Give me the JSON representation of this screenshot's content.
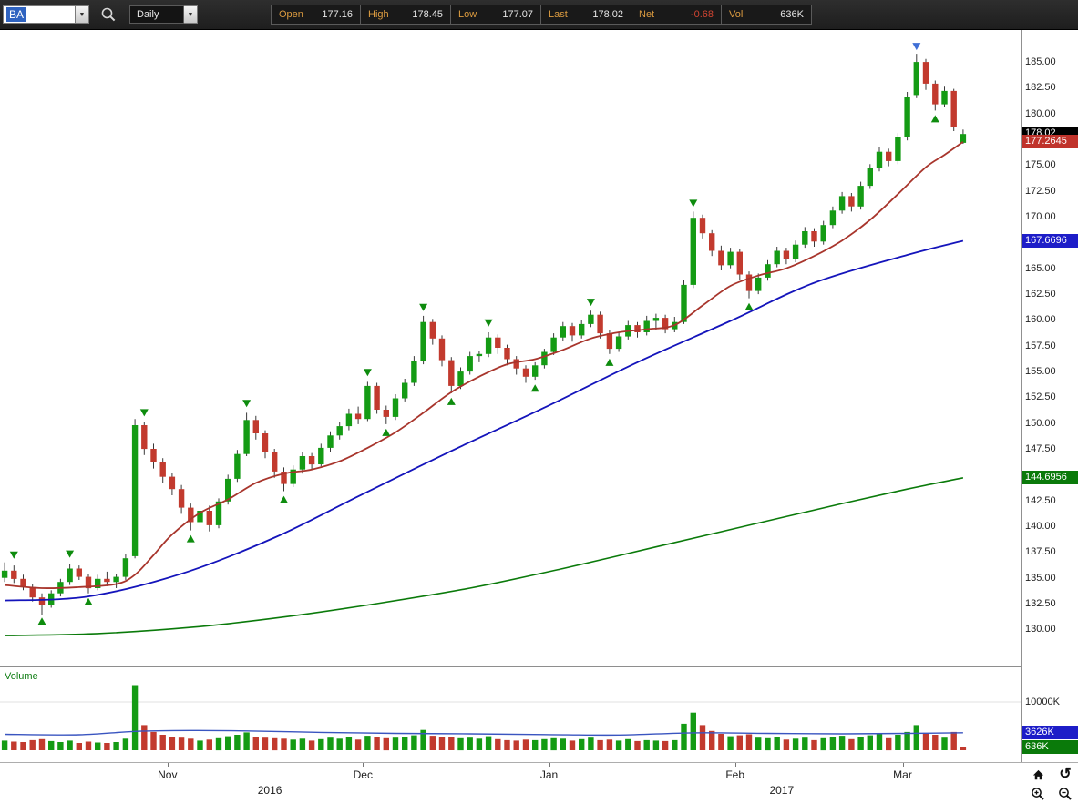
{
  "toolbar": {
    "symbol_value": "BA",
    "timeframe": "Daily",
    "quote_fields": [
      {
        "label": "Open",
        "value": "177.16",
        "value_color": "#e6e6e6"
      },
      {
        "label": "High",
        "value": "178.45",
        "value_color": "#e6e6e6"
      },
      {
        "label": "Low",
        "value": "177.07",
        "value_color": "#e6e6e6"
      },
      {
        "label": "Last",
        "value": "178.02",
        "value_color": "#e6e6e6"
      },
      {
        "label": "Net",
        "value": "-0.68",
        "value_color": "#d24532"
      },
      {
        "label": "Vol",
        "value": "636K",
        "value_color": "#e6e6e6"
      }
    ]
  },
  "icons": {
    "chevron_down": "▼",
    "undo": "↺"
  },
  "chart_data": {
    "type": "candlestick",
    "symbol": "BA",
    "timeframe": "Daily",
    "price_range": [
      126.5,
      188.1
    ],
    "ylim": [
      126.5,
      188.1
    ],
    "y_ticks": [
      "185.00",
      "182.50",
      "180.00",
      "175.00",
      "172.50",
      "170.00",
      "165.00",
      "162.50",
      "160.00",
      "157.50",
      "155.00",
      "152.50",
      "150.00",
      "147.50",
      "142.50",
      "140.00",
      "137.50",
      "135.00",
      "132.50",
      "130.00"
    ],
    "y_badges": [
      {
        "text": "178.02",
        "value": 178.02,
        "bg": "#000000"
      },
      {
        "text": "177.2645",
        "value": 177.2645,
        "bg": "#c0332b"
      },
      {
        "text": "167.6696",
        "value": 167.6696,
        "bg": "#1d1dc8"
      },
      {
        "text": "144.6956",
        "value": 144.6956,
        "bg": "#0a7a0a"
      }
    ],
    "x_axis": {
      "months": [
        {
          "label": "Nov",
          "i": 18
        },
        {
          "label": "Dec",
          "i": 39
        },
        {
          "label": "Jan",
          "i": 59
        },
        {
          "label": "Feb",
          "i": 79
        },
        {
          "label": "Mar",
          "i": 97
        }
      ],
      "years": [
        {
          "label": "2016",
          "i": 29
        },
        {
          "label": "2017",
          "i": 84
        }
      ]
    },
    "colors": {
      "up": "#149b14",
      "down": "#c23a2e",
      "wick": "#3a3a3a",
      "ma_fast": "#a8352c",
      "ma_mid": "#1414bb",
      "ma_slow": "#0a7a0a",
      "vol_ma": "#3a55c0"
    },
    "candles": [
      [
        135.0,
        136.5,
        134.6,
        135.7,
        2000
      ],
      [
        135.7,
        136.2,
        134.5,
        134.9,
        1800
      ],
      [
        134.9,
        135.3,
        133.8,
        134.1,
        1700
      ],
      [
        134.1,
        134.4,
        132.7,
        133.1,
        2100
      ],
      [
        133.1,
        133.5,
        131.4,
        132.4,
        2300
      ],
      [
        132.4,
        133.8,
        132.1,
        133.5,
        1900
      ],
      [
        133.5,
        134.9,
        133.2,
        134.6,
        1700
      ],
      [
        134.6,
        136.3,
        134.3,
        135.9,
        2000
      ],
      [
        135.9,
        136.2,
        134.8,
        135.1,
        1500
      ],
      [
        135.1,
        135.4,
        133.5,
        134.0,
        1800
      ],
      [
        134.0,
        135.3,
        133.8,
        134.9,
        1600
      ],
      [
        134.9,
        135.6,
        134.2,
        134.6,
        1500
      ],
      [
        134.6,
        135.4,
        134.0,
        135.1,
        1700
      ],
      [
        135.1,
        137.3,
        134.8,
        136.9,
        2400
      ],
      [
        137.1,
        150.4,
        136.9,
        149.8,
        13500
      ],
      [
        149.8,
        150.1,
        146.9,
        147.5,
        5200
      ],
      [
        147.5,
        148.0,
        145.6,
        146.2,
        3800
      ],
      [
        146.2,
        146.6,
        144.2,
        144.8,
        3200
      ],
      [
        144.8,
        145.2,
        143.0,
        143.6,
        2800
      ],
      [
        143.6,
        144.0,
        141.2,
        141.8,
        2600
      ],
      [
        141.8,
        142.2,
        139.6,
        140.4,
        2400
      ],
      [
        140.4,
        141.9,
        139.9,
        141.5,
        2000
      ],
      [
        141.5,
        142.0,
        139.5,
        140.1,
        2200
      ],
      [
        140.1,
        142.7,
        139.8,
        142.4,
        2500
      ],
      [
        142.4,
        145.0,
        142.1,
        144.6,
        2900
      ],
      [
        144.6,
        147.4,
        144.3,
        147.0,
        3200
      ],
      [
        147.0,
        151.0,
        146.8,
        150.3,
        3700
      ],
      [
        150.3,
        150.7,
        148.4,
        149.0,
        2800
      ],
      [
        149.0,
        149.3,
        146.6,
        147.2,
        2600
      ],
      [
        147.2,
        147.5,
        144.7,
        145.3,
        2500
      ],
      [
        145.3,
        145.7,
        143.4,
        144.1,
        2400
      ],
      [
        144.1,
        145.9,
        143.8,
        145.5,
        2200
      ],
      [
        145.5,
        147.2,
        145.1,
        146.8,
        2400
      ],
      [
        146.8,
        147.1,
        145.5,
        146.0,
        2000
      ],
      [
        146.0,
        148.0,
        145.8,
        147.6,
        2300
      ],
      [
        147.6,
        149.2,
        147.2,
        148.8,
        2600
      ],
      [
        148.8,
        150.1,
        148.4,
        149.7,
        2400
      ],
      [
        149.7,
        151.4,
        149.3,
        150.9,
        2800
      ],
      [
        150.9,
        151.6,
        149.9,
        150.4,
        2200
      ],
      [
        150.4,
        154.0,
        150.2,
        153.6,
        3000
      ],
      [
        153.6,
        153.9,
        150.9,
        151.3,
        2700
      ],
      [
        151.3,
        151.7,
        149.9,
        150.6,
        2500
      ],
      [
        150.6,
        152.8,
        150.3,
        152.4,
        2600
      ],
      [
        152.4,
        154.3,
        152.1,
        153.9,
        2800
      ],
      [
        153.9,
        156.5,
        153.6,
        156.0,
        3100
      ],
      [
        156.0,
        160.4,
        155.7,
        159.8,
        4200
      ],
      [
        159.8,
        160.1,
        157.6,
        158.2,
        3000
      ],
      [
        158.2,
        158.5,
        155.5,
        156.1,
        2800
      ],
      [
        156.1,
        156.4,
        152.9,
        153.6,
        2700
      ],
      [
        153.6,
        155.4,
        153.3,
        155.0,
        2500
      ],
      [
        155.0,
        156.9,
        154.7,
        156.5,
        2600
      ],
      [
        156.5,
        157.0,
        155.9,
        156.7,
        2400
      ],
      [
        156.7,
        158.8,
        156.4,
        158.3,
        2900
      ],
      [
        158.3,
        158.6,
        156.7,
        157.3,
        2300
      ],
      [
        157.3,
        157.6,
        155.6,
        156.2,
        2100
      ],
      [
        156.2,
        156.5,
        154.7,
        155.3,
        2000
      ],
      [
        155.3,
        155.6,
        153.9,
        154.5,
        2200
      ],
      [
        154.5,
        155.9,
        154.2,
        155.6,
        2100
      ],
      [
        155.6,
        157.2,
        155.3,
        156.9,
        2300
      ],
      [
        156.9,
        158.7,
        156.6,
        158.3,
        2500
      ],
      [
        158.3,
        159.8,
        158.0,
        159.4,
        2400
      ],
      [
        159.4,
        159.7,
        157.9,
        158.5,
        2000
      ],
      [
        158.5,
        160.0,
        158.2,
        159.6,
        2300
      ],
      [
        159.6,
        160.9,
        159.3,
        160.5,
        2600
      ],
      [
        160.5,
        160.8,
        158.2,
        158.7,
        2100
      ],
      [
        158.7,
        159.0,
        156.7,
        157.2,
        2200
      ],
      [
        157.2,
        158.8,
        156.9,
        158.4,
        2000
      ],
      [
        158.4,
        159.9,
        158.1,
        159.5,
        2300
      ],
      [
        159.5,
        159.8,
        158.3,
        158.8,
        1900
      ],
      [
        158.8,
        160.4,
        158.5,
        159.9,
        2100
      ],
      [
        159.9,
        160.6,
        159.0,
        160.2,
        2000
      ],
      [
        160.2,
        160.5,
        158.7,
        159.1,
        1900
      ],
      [
        159.1,
        160.3,
        158.8,
        159.8,
        2100
      ],
      [
        159.8,
        163.9,
        159.6,
        163.4,
        5500
      ],
      [
        163.4,
        170.5,
        163.1,
        169.9,
        7800
      ],
      [
        169.9,
        170.2,
        167.9,
        168.4,
        5200
      ],
      [
        168.4,
        168.7,
        166.2,
        166.7,
        4000
      ],
      [
        166.7,
        167.2,
        164.8,
        165.3,
        3400
      ],
      [
        165.3,
        167.0,
        165.0,
        166.6,
        2900
      ],
      [
        166.6,
        166.9,
        163.9,
        164.4,
        3100
      ],
      [
        164.4,
        164.7,
        162.1,
        162.8,
        3300
      ],
      [
        162.8,
        164.5,
        162.5,
        164.1,
        2600
      ],
      [
        164.1,
        165.8,
        163.8,
        165.4,
        2500
      ],
      [
        165.4,
        167.1,
        165.1,
        166.7,
        2700
      ],
      [
        166.7,
        167.0,
        165.4,
        165.9,
        2200
      ],
      [
        165.9,
        167.7,
        165.6,
        167.3,
        2400
      ],
      [
        167.3,
        169.0,
        167.0,
        168.6,
        2600
      ],
      [
        168.6,
        168.9,
        167.1,
        167.6,
        2100
      ],
      [
        167.6,
        169.6,
        167.3,
        169.2,
        2500
      ],
      [
        169.2,
        171.0,
        168.9,
        170.6,
        2800
      ],
      [
        170.6,
        172.4,
        170.3,
        172.0,
        3000
      ],
      [
        172.0,
        172.3,
        170.5,
        171.0,
        2300
      ],
      [
        171.0,
        173.4,
        170.7,
        173.0,
        2700
      ],
      [
        173.0,
        175.1,
        172.7,
        174.7,
        3100
      ],
      [
        174.7,
        176.8,
        174.4,
        176.3,
        3400
      ],
      [
        176.3,
        176.6,
        174.9,
        175.4,
        2500
      ],
      [
        175.4,
        178.1,
        175.1,
        177.7,
        3200
      ],
      [
        177.7,
        182.1,
        177.4,
        181.6,
        3800
      ],
      [
        181.8,
        185.8,
        181.5,
        185.0,
        5200
      ],
      [
        185.0,
        185.3,
        182.3,
        182.9,
        3600
      ],
      [
        182.9,
        183.2,
        180.3,
        180.9,
        3200
      ],
      [
        180.9,
        182.6,
        180.6,
        182.2,
        2600
      ],
      [
        182.2,
        182.4,
        178.3,
        178.7,
        3800
      ],
      [
        177.16,
        178.45,
        177.07,
        178.02,
        636
      ]
    ],
    "ma_lines": [
      {
        "name": "ma-red-fast",
        "color": "#a8352c",
        "width": 1.8,
        "last_value": 177.2645,
        "points": [
          [
            0,
            134.3
          ],
          [
            4,
            134.0
          ],
          [
            8,
            134.1
          ],
          [
            12,
            134.4
          ],
          [
            14,
            135.3
          ],
          [
            16,
            137.2
          ],
          [
            18,
            139.2
          ],
          [
            21,
            141.3
          ],
          [
            24,
            142.6
          ],
          [
            27,
            144.2
          ],
          [
            30,
            145.1
          ],
          [
            33,
            145.5
          ],
          [
            36,
            146.3
          ],
          [
            39,
            147.6
          ],
          [
            42,
            149.1
          ],
          [
            45,
            151.0
          ],
          [
            48,
            153.0
          ],
          [
            51,
            154.5
          ],
          [
            54,
            155.7
          ],
          [
            57,
            156.2
          ],
          [
            60,
            157.1
          ],
          [
            63,
            158.2
          ],
          [
            66,
            158.8
          ],
          [
            69,
            159.1
          ],
          [
            72,
            159.5
          ],
          [
            75,
            161.4
          ],
          [
            78,
            163.3
          ],
          [
            81,
            164.3
          ],
          [
            84,
            165.0
          ],
          [
            87,
            166.2
          ],
          [
            90,
            167.7
          ],
          [
            93,
            169.7
          ],
          [
            96,
            172.2
          ],
          [
            99,
            174.8
          ],
          [
            101,
            176.0
          ],
          [
            103,
            177.26
          ]
        ]
      },
      {
        "name": "ma-blue-mid",
        "color": "#1414bb",
        "width": 1.8,
        "last_value": 167.6696,
        "points": [
          [
            0,
            132.8
          ],
          [
            9,
            133.2
          ],
          [
            19,
            135.4
          ],
          [
            29,
            138.9
          ],
          [
            38,
            142.9
          ],
          [
            48,
            147.3
          ],
          [
            58,
            151.5
          ],
          [
            68,
            155.9
          ],
          [
            78,
            159.9
          ],
          [
            87,
            163.6
          ],
          [
            97,
            166.3
          ],
          [
            103,
            167.67
          ]
        ]
      },
      {
        "name": "ma-green-slow",
        "color": "#0a7a0a",
        "width": 1.6,
        "last_value": 144.6956,
        "points": [
          [
            0,
            129.4
          ],
          [
            10,
            129.6
          ],
          [
            20,
            130.2
          ],
          [
            30,
            131.2
          ],
          [
            40,
            132.5
          ],
          [
            50,
            134.0
          ],
          [
            60,
            135.9
          ],
          [
            70,
            138.0
          ],
          [
            80,
            140.1
          ],
          [
            90,
            142.2
          ],
          [
            97,
            143.6
          ],
          [
            103,
            144.7
          ]
        ]
      }
    ],
    "markers": [
      {
        "i": 1,
        "dir": "down",
        "price": 137.2,
        "color": "#0e8c0e"
      },
      {
        "i": 4,
        "dir": "up",
        "price": 130.8,
        "color": "#0e8c0e"
      },
      {
        "i": 7,
        "dir": "down",
        "price": 137.3,
        "color": "#0e8c0e"
      },
      {
        "i": 9,
        "dir": "up",
        "price": 132.7,
        "color": "#0e8c0e"
      },
      {
        "i": 15,
        "dir": "down",
        "price": 151.0,
        "color": "#0e8c0e"
      },
      {
        "i": 20,
        "dir": "up",
        "price": 138.8,
        "color": "#0e8c0e"
      },
      {
        "i": 26,
        "dir": "down",
        "price": 151.9,
        "color": "#0e8c0e"
      },
      {
        "i": 30,
        "dir": "up",
        "price": 142.6,
        "color": "#0e8c0e"
      },
      {
        "i": 39,
        "dir": "down",
        "price": 154.9,
        "color": "#0e8c0e"
      },
      {
        "i": 41,
        "dir": "up",
        "price": 149.1,
        "color": "#0e8c0e"
      },
      {
        "i": 45,
        "dir": "down",
        "price": 161.2,
        "color": "#0e8c0e"
      },
      {
        "i": 48,
        "dir": "up",
        "price": 152.1,
        "color": "#0e8c0e"
      },
      {
        "i": 52,
        "dir": "down",
        "price": 159.7,
        "color": "#0e8c0e"
      },
      {
        "i": 57,
        "dir": "up",
        "price": 153.4,
        "color": "#0e8c0e"
      },
      {
        "i": 63,
        "dir": "down",
        "price": 161.7,
        "color": "#0e8c0e"
      },
      {
        "i": 65,
        "dir": "up",
        "price": 155.9,
        "color": "#0e8c0e"
      },
      {
        "i": 74,
        "dir": "down",
        "price": 171.3,
        "color": "#0e8c0e"
      },
      {
        "i": 80,
        "dir": "up",
        "price": 161.3,
        "color": "#0e8c0e"
      },
      {
        "i": 98,
        "dir": "down",
        "price": 186.5,
        "color": "#3f6fd6"
      },
      {
        "i": 100,
        "dir": "up",
        "price": 179.5,
        "color": "#0e8c0e"
      }
    ],
    "volume": {
      "label": "Volume",
      "grid_label": "10000K",
      "grid_value": 10000,
      "ma_color": "#3a55c0",
      "ma_points": [
        [
          0,
          3300
        ],
        [
          8,
          3200
        ],
        [
          14,
          3900
        ],
        [
          20,
          4100
        ],
        [
          26,
          4000
        ],
        [
          34,
          3700
        ],
        [
          42,
          3500
        ],
        [
          50,
          3400
        ],
        [
          58,
          3250
        ],
        [
          66,
          3150
        ],
        [
          74,
          3600
        ],
        [
          82,
          3500
        ],
        [
          90,
          3400
        ],
        [
          97,
          3500
        ],
        [
          103,
          3626
        ]
      ],
      "badges": [
        {
          "text": "3626K",
          "value": 3626,
          "bg": "#1d1dc8"
        },
        {
          "text": "636K",
          "value": 636,
          "bg": "#0a7a0a"
        }
      ]
    }
  }
}
